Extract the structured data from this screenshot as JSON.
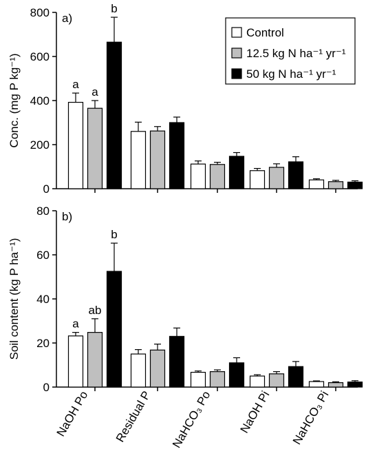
{
  "legend": {
    "items": [
      {
        "text": "Control",
        "color": "#ffffff"
      },
      {
        "text": "12.5 kg N ha⁻¹ yr⁻¹",
        "color": "#bfbfbf"
      },
      {
        "text": "50 kg N ha⁻¹ yr⁻¹",
        "color": "#000000"
      }
    ]
  },
  "categories": [
    "NaOH Po",
    "Residual P",
    "NaHCO₃ Po",
    "NaOH Pi",
    "NaHCO₃ Pi"
  ],
  "chart_data": [
    {
      "type": "bar",
      "panel_label": "a)",
      "ylabel": "Conc. (mg P kg⁻¹)",
      "ylim": [
        0,
        800
      ],
      "yticks": [
        "0",
        "200",
        "400",
        "600",
        "800"
      ],
      "legend_position": "top-right",
      "series": [
        {
          "name": "Control",
          "values": [
            392,
            260,
            112,
            82,
            40
          ],
          "errors": [
            42,
            42,
            14,
            10,
            5
          ]
        },
        {
          "name": "12.5 kg N ha⁻¹ yr⁻¹",
          "values": [
            365,
            262,
            110,
            97,
            32
          ],
          "errors": [
            35,
            20,
            10,
            16,
            6
          ]
        },
        {
          "name": "50 kg N ha⁻¹ yr⁻¹",
          "values": [
            665,
            300,
            147,
            122,
            30
          ],
          "errors": [
            113,
            25,
            17,
            23,
            6
          ]
        }
      ],
      "annotations": [
        {
          "category": 0,
          "series": 0,
          "text": "a"
        },
        {
          "category": 0,
          "series": 1,
          "text": "a"
        },
        {
          "category": 0,
          "series": 2,
          "text": "b"
        }
      ]
    },
    {
      "type": "bar",
      "panel_label": "b)",
      "ylabel": "Soil content (kg P ha⁻¹)",
      "ylim": [
        0,
        80
      ],
      "yticks": [
        "0",
        "20",
        "40",
        "60",
        "80"
      ],
      "series": [
        {
          "name": "Control",
          "values": [
            23.2,
            15.0,
            6.7,
            5.0,
            2.5
          ],
          "errors": [
            1.6,
            2.0,
            0.6,
            0.6,
            0.3
          ]
        },
        {
          "name": "12.5 kg N ha⁻¹ yr⁻¹",
          "values": [
            24.8,
            16.8,
            7.0,
            6.0,
            2.0
          ],
          "errors": [
            6.2,
            2.7,
            0.8,
            1.0,
            0.4
          ]
        },
        {
          "name": "50 kg N ha⁻¹ yr⁻¹",
          "values": [
            52.5,
            23.0,
            11.0,
            9.3,
            2.3
          ],
          "errors": [
            12.8,
            3.8,
            2.3,
            2.3,
            0.6
          ]
        }
      ],
      "annotations": [
        {
          "category": 0,
          "series": 0,
          "text": "a"
        },
        {
          "category": 0,
          "series": 1,
          "text": "ab"
        },
        {
          "category": 0,
          "series": 2,
          "text": "b"
        }
      ]
    }
  ]
}
